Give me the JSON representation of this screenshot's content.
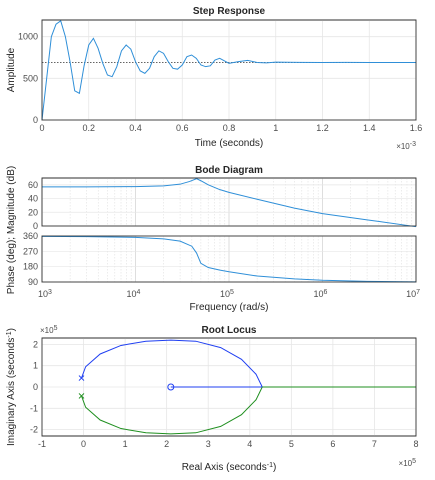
{
  "chart_data": [
    {
      "type": "line",
      "title": "Step Response",
      "xlabel": "Time (seconds)",
      "ylabel": "Amplitude",
      "x_multiplier": "×10",
      "x_multiplier_exp": "-3",
      "xlim": [
        0,
        1.6
      ],
      "ylim": [
        0,
        1200
      ],
      "xticks": [
        "0",
        "0.2",
        "0.4",
        "0.6",
        "0.8",
        "1",
        "1.2",
        "1.4",
        "1.6"
      ],
      "yticks": [
        "0",
        "500",
        "1000"
      ],
      "grid": true,
      "color": "#2f8fd8",
      "final_value": 690,
      "series": [
        {
          "x": [
            0,
            0.02,
            0.04,
            0.06,
            0.08,
            0.1,
            0.12,
            0.14,
            0.16,
            0.18,
            0.2,
            0.22,
            0.24,
            0.26,
            0.28,
            0.3,
            0.32,
            0.34,
            0.36,
            0.38,
            0.4,
            0.42,
            0.44,
            0.46,
            0.48,
            0.5,
            0.52,
            0.54,
            0.56,
            0.58,
            0.6,
            0.62,
            0.64,
            0.66,
            0.68,
            0.7,
            0.72,
            0.74,
            0.76,
            0.78,
            0.8,
            0.84,
            0.88,
            0.92,
            0.96,
            1.0,
            1.1,
            1.2,
            1.3,
            1.4,
            1.5,
            1.6
          ],
          "y": [
            0,
            500,
            1000,
            1150,
            1190,
            1000,
            700,
            350,
            320,
            650,
            900,
            980,
            860,
            680,
            540,
            520,
            640,
            830,
            900,
            850,
            700,
            590,
            560,
            620,
            760,
            830,
            800,
            700,
            620,
            610,
            660,
            760,
            780,
            740,
            660,
            640,
            650,
            720,
            740,
            710,
            680,
            700,
            715,
            690,
            685,
            695,
            692,
            690,
            691,
            690,
            690,
            690
          ]
        }
      ]
    },
    {
      "type": "line",
      "title": "Bode Diagram",
      "xlabel": "Frequency  (rad/s)",
      "ylabel": "Phase (deg); Magnitude (dB)",
      "magnitude_ylabel": "Magnitude (dB)",
      "phase_ylabel": "Phase (deg)",
      "x_scale": "log",
      "xlim": [
        1000,
        10000000
      ],
      "xticks": [
        "10",
        "10",
        "10",
        "10",
        "10"
      ],
      "xtick_exps": [
        "3",
        "4",
        "5",
        "6",
        "7"
      ],
      "magnitude_ylim": [
        0,
        70
      ],
      "magnitude_yticks": [
        "0",
        "20",
        "40",
        "60"
      ],
      "phase_ylim": [
        90,
        360
      ],
      "phase_yticks": [
        "90",
        "180",
        "270",
        "360"
      ],
      "grid": true,
      "color": "#2f8fd8",
      "series": [
        {
          "name": "magnitude",
          "x": [
            1000,
            3000,
            10000,
            20000,
            30000,
            38000,
            45000,
            50000,
            60000,
            80000,
            100000,
            200000,
            500000,
            1000000,
            3000000,
            10000000
          ],
          "y": [
            57,
            57,
            57.5,
            58.5,
            61,
            65,
            69,
            66,
            60,
            53,
            49,
            39,
            26,
            18,
            9,
            -1
          ]
        },
        {
          "name": "phase",
          "x": [
            1000,
            3000,
            10000,
            20000,
            30000,
            40000,
            45000,
            50000,
            60000,
            80000,
            100000,
            200000,
            500000,
            1000000,
            3000000,
            10000000
          ],
          "y": [
            358,
            356,
            352,
            343,
            330,
            300,
            260,
            200,
            175,
            160,
            150,
            125,
            108,
            100,
            94,
            91
          ]
        }
      ]
    },
    {
      "type": "scatter",
      "title": "Root Locus",
      "xlabel": "Real Axis (seconds",
      "xlabel_sup": "-1",
      "xlabel_close": ")",
      "ylabel": "Imaginary Axis (seconds",
      "ylabel_sup": "-1",
      "ylabel_close": ")",
      "x_multiplier": "×10",
      "x_multiplier_exp": "5",
      "y_multiplier": "×10",
      "y_multiplier_exp": "5",
      "xlim": [
        -1,
        8
      ],
      "ylim": [
        -2.3,
        2.3
      ],
      "xticks": [
        "-1",
        "0",
        "1",
        "2",
        "3",
        "4",
        "5",
        "6",
        "7",
        "8"
      ],
      "yticks": [
        "-2",
        "-1",
        "0",
        "1",
        "2"
      ],
      "grid": true,
      "poles": [
        [
          -0.05,
          0.42
        ],
        [
          -0.05,
          -0.42
        ]
      ],
      "zeros": [
        [
          2.1,
          0
        ]
      ],
      "branch_colors": [
        "#1f3ff2",
        "#1f8f1f"
      ],
      "series": [
        {
          "name": "",
          "color": "#1f3ff2",
          "x": [
            -0.05,
            0.05,
            0.4,
            0.9,
            1.5,
            2.1,
            2.7,
            3.3,
            3.8,
            4.15,
            4.3
          ],
          "y": [
            0.42,
            0.95,
            1.55,
            1.95,
            2.15,
            2.2,
            2.15,
            1.85,
            1.3,
            0.6,
            0
          ]
        },
        {
          "name": "",
          "color": "#1f8f1f",
          "x": [
            -0.05,
            0.05,
            0.4,
            0.9,
            1.5,
            2.1,
            2.7,
            3.3,
            3.8,
            4.15,
            4.3
          ],
          "y": [
            -0.42,
            -0.95,
            -1.55,
            -1.95,
            -2.15,
            -2.2,
            -2.15,
            -1.85,
            -1.3,
            -0.6,
            0
          ]
        },
        {
          "name": "",
          "color": "#1f3ff2",
          "x": [
            2.1,
            4.3
          ],
          "y": [
            0,
            0
          ]
        },
        {
          "name": "",
          "color": "#1f8f1f",
          "x": [
            4.3,
            8.0
          ],
          "y": [
            0,
            0
          ]
        }
      ]
    }
  ]
}
